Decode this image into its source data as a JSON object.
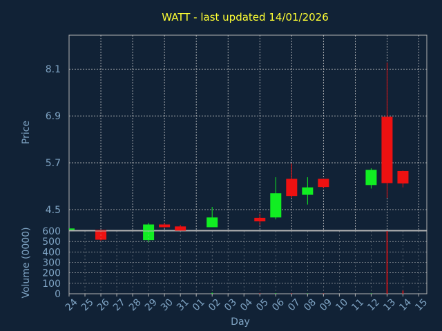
{
  "colors": {
    "background": "#112236",
    "title": "#ffff33",
    "axis_text": "#7fa4c4",
    "grid": "#c8c8c8",
    "frame": "#b4b4b4",
    "up": "#11ee22",
    "down": "#ee1111"
  },
  "chart_data": [
    {
      "type": "candlestick",
      "title": "WATT - last updated 14/01/2026",
      "ylabel": "Price",
      "xlabel": "Day",
      "grid": true,
      "ylim": [
        3.97,
        8.97
      ],
      "yticks": [
        "4.5",
        "5.7",
        "6.9",
        "8.1"
      ],
      "yticks_values": [
        4.5,
        5.7,
        6.9,
        8.1
      ],
      "x_categories": [
        "24",
        "25",
        "26",
        "27",
        "28",
        "29",
        "30",
        "31",
        "01",
        "02",
        "03",
        "04",
        "05",
        "06",
        "07",
        "08",
        "09",
        "10",
        "11",
        "12",
        "13",
        "14",
        "15"
      ],
      "candles": [
        {
          "day": "24",
          "open": 4.0,
          "close": 4.0,
          "high": 4.0,
          "low": 4.0
        },
        {
          "day": "26",
          "open": 3.98,
          "close": 3.73,
          "high": 3.98,
          "low": 3.7
        },
        {
          "day": "29",
          "open": 3.72,
          "close": 4.12,
          "high": 4.16,
          "low": 3.66
        },
        {
          "day": "30",
          "open": 4.12,
          "close": 4.05,
          "high": 4.15,
          "low": 4.03
        },
        {
          "day": "31",
          "open": 4.07,
          "close": 3.95,
          "high": 4.11,
          "low": 3.94
        },
        {
          "day": "02",
          "open": 4.05,
          "close": 4.3,
          "high": 4.57,
          "low": 4.05
        },
        {
          "day": "05",
          "open": 4.29,
          "close": 4.2,
          "high": 4.4,
          "low": 4.1
        },
        {
          "day": "06",
          "open": 4.3,
          "close": 4.92,
          "high": 5.33,
          "low": 4.25
        },
        {
          "day": "07",
          "open": 5.29,
          "close": 4.85,
          "high": 5.68,
          "low": 4.8
        },
        {
          "day": "08",
          "open": 4.88,
          "close": 5.07,
          "high": 5.33,
          "low": 4.63
        },
        {
          "day": "09",
          "open": 5.29,
          "close": 5.08,
          "high": 5.29,
          "low": 5.05
        },
        {
          "day": "12",
          "open": 5.13,
          "close": 5.52,
          "high": 5.56,
          "low": 5.04
        },
        {
          "day": "13",
          "open": 6.88,
          "close": 5.18,
          "high": 8.27,
          "low": 4.8
        },
        {
          "day": "14",
          "open": 5.49,
          "close": 5.17,
          "high": 5.5,
          "low": 5.07
        }
      ]
    },
    {
      "type": "bar",
      "ylabel": "Volume (0000)",
      "ylim": [
        0,
        600
      ],
      "yticks": [
        "0",
        "100",
        "200",
        "300",
        "400",
        "500",
        "600"
      ],
      "yticks_values": [
        0,
        100,
        200,
        300,
        400,
        500,
        600
      ],
      "categories": [
        "24",
        "25",
        "26",
        "27",
        "28",
        "29",
        "30",
        "31",
        "01",
        "02",
        "03",
        "04",
        "05",
        "06",
        "07",
        "08",
        "09",
        "10",
        "11",
        "12",
        "13",
        "14",
        "15"
      ],
      "values": [
        0,
        0,
        0,
        0,
        0,
        0,
        0,
        0,
        0,
        10,
        0,
        0,
        5,
        6,
        4,
        3,
        3,
        0,
        0,
        4,
        620,
        30,
        0
      ],
      "colors": [
        "up",
        "up",
        "down",
        "up",
        "up",
        "up",
        "down",
        "down",
        "up",
        "up",
        "up",
        "up",
        "down",
        "up",
        "down",
        "up",
        "down",
        "up",
        "up",
        "up",
        "down",
        "down",
        "up"
      ]
    }
  ]
}
